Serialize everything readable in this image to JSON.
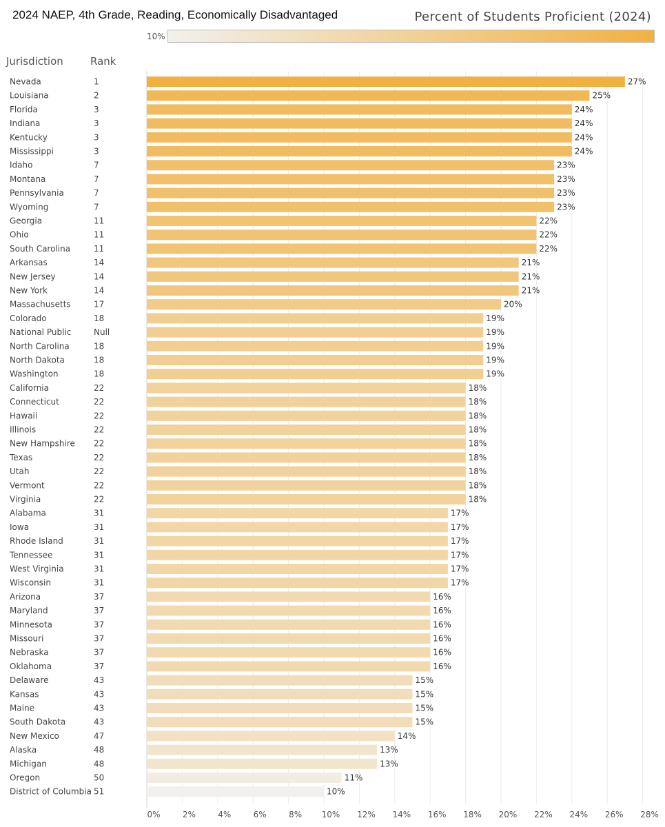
{
  "title": "2024 NAEP, 4th Grade, Reading, Economically Disadvantaged",
  "legend": {
    "title": "Percent of Students Proficient (2024)",
    "min_label": "10%",
    "color_low": "#f2f0ec",
    "color_high": "#f1b142"
  },
  "headers": {
    "jurisdiction": "Jurisdiction",
    "rank": "Rank"
  },
  "chart_data": {
    "type": "bar",
    "orientation": "horizontal",
    "xlim": [
      0,
      28
    ],
    "x_ticks": [
      "0%",
      "2%",
      "4%",
      "6%",
      "8%",
      "10%",
      "12%",
      "14%",
      "16%",
      "18%",
      "20%",
      "22%",
      "24%",
      "26%",
      "28%"
    ],
    "grid": true,
    "rows": [
      {
        "jurisdiction": "Nevada",
        "rank": "1",
        "value": 27,
        "label": "27%"
      },
      {
        "jurisdiction": "Louisiana",
        "rank": "2",
        "value": 25,
        "label": "25%"
      },
      {
        "jurisdiction": "Florida",
        "rank": "3",
        "value": 24,
        "label": "24%"
      },
      {
        "jurisdiction": "Indiana",
        "rank": "3",
        "value": 24,
        "label": "24%"
      },
      {
        "jurisdiction": "Kentucky",
        "rank": "3",
        "value": 24,
        "label": "24%"
      },
      {
        "jurisdiction": "Mississippi",
        "rank": "3",
        "value": 24,
        "label": "24%"
      },
      {
        "jurisdiction": "Idaho",
        "rank": "7",
        "value": 23,
        "label": "23%"
      },
      {
        "jurisdiction": "Montana",
        "rank": "7",
        "value": 23,
        "label": "23%"
      },
      {
        "jurisdiction": "Pennsylvania",
        "rank": "7",
        "value": 23,
        "label": "23%"
      },
      {
        "jurisdiction": "Wyoming",
        "rank": "7",
        "value": 23,
        "label": "23%"
      },
      {
        "jurisdiction": "Georgia",
        "rank": "11",
        "value": 22,
        "label": "22%"
      },
      {
        "jurisdiction": "Ohio",
        "rank": "11",
        "value": 22,
        "label": "22%"
      },
      {
        "jurisdiction": "South Carolina",
        "rank": "11",
        "value": 22,
        "label": "22%"
      },
      {
        "jurisdiction": "Arkansas",
        "rank": "14",
        "value": 21,
        "label": "21%"
      },
      {
        "jurisdiction": "New Jersey",
        "rank": "14",
        "value": 21,
        "label": "21%"
      },
      {
        "jurisdiction": "New York",
        "rank": "14",
        "value": 21,
        "label": "21%"
      },
      {
        "jurisdiction": "Massachusetts",
        "rank": "17",
        "value": 20,
        "label": "20%"
      },
      {
        "jurisdiction": "Colorado",
        "rank": "18",
        "value": 19,
        "label": "19%"
      },
      {
        "jurisdiction": "National Public",
        "rank": "Null",
        "value": 19,
        "label": "19%"
      },
      {
        "jurisdiction": "North Carolina",
        "rank": "18",
        "value": 19,
        "label": "19%"
      },
      {
        "jurisdiction": "North Dakota",
        "rank": "18",
        "value": 19,
        "label": "19%"
      },
      {
        "jurisdiction": "Washington",
        "rank": "18",
        "value": 19,
        "label": "19%"
      },
      {
        "jurisdiction": "California",
        "rank": "22",
        "value": 18,
        "label": "18%"
      },
      {
        "jurisdiction": "Connecticut",
        "rank": "22",
        "value": 18,
        "label": "18%"
      },
      {
        "jurisdiction": "Hawaii",
        "rank": "22",
        "value": 18,
        "label": "18%"
      },
      {
        "jurisdiction": "Illinois",
        "rank": "22",
        "value": 18,
        "label": "18%"
      },
      {
        "jurisdiction": "New Hampshire",
        "rank": "22",
        "value": 18,
        "label": "18%"
      },
      {
        "jurisdiction": "Texas",
        "rank": "22",
        "value": 18,
        "label": "18%"
      },
      {
        "jurisdiction": "Utah",
        "rank": "22",
        "value": 18,
        "label": "18%"
      },
      {
        "jurisdiction": "Vermont",
        "rank": "22",
        "value": 18,
        "label": "18%"
      },
      {
        "jurisdiction": "Virginia",
        "rank": "22",
        "value": 18,
        "label": "18%"
      },
      {
        "jurisdiction": "Alabama",
        "rank": "31",
        "value": 17,
        "label": "17%"
      },
      {
        "jurisdiction": "Iowa",
        "rank": "31",
        "value": 17,
        "label": "17%"
      },
      {
        "jurisdiction": "Rhode Island",
        "rank": "31",
        "value": 17,
        "label": "17%"
      },
      {
        "jurisdiction": "Tennessee",
        "rank": "31",
        "value": 17,
        "label": "17%"
      },
      {
        "jurisdiction": "West Virginia",
        "rank": "31",
        "value": 17,
        "label": "17%"
      },
      {
        "jurisdiction": "Wisconsin",
        "rank": "31",
        "value": 17,
        "label": "17%"
      },
      {
        "jurisdiction": "Arizona",
        "rank": "37",
        "value": 16,
        "label": "16%"
      },
      {
        "jurisdiction": "Maryland",
        "rank": "37",
        "value": 16,
        "label": "16%"
      },
      {
        "jurisdiction": "Minnesota",
        "rank": "37",
        "value": 16,
        "label": "16%"
      },
      {
        "jurisdiction": "Missouri",
        "rank": "37",
        "value": 16,
        "label": "16%"
      },
      {
        "jurisdiction": "Nebraska",
        "rank": "37",
        "value": 16,
        "label": "16%"
      },
      {
        "jurisdiction": "Oklahoma",
        "rank": "37",
        "value": 16,
        "label": "16%"
      },
      {
        "jurisdiction": "Delaware",
        "rank": "43",
        "value": 15,
        "label": "15%"
      },
      {
        "jurisdiction": "Kansas",
        "rank": "43",
        "value": 15,
        "label": "15%"
      },
      {
        "jurisdiction": "Maine",
        "rank": "43",
        "value": 15,
        "label": "15%"
      },
      {
        "jurisdiction": "South Dakota",
        "rank": "43",
        "value": 15,
        "label": "15%"
      },
      {
        "jurisdiction": "New Mexico",
        "rank": "47",
        "value": 14,
        "label": "14%"
      },
      {
        "jurisdiction": "Alaska",
        "rank": "48",
        "value": 13,
        "label": "13%"
      },
      {
        "jurisdiction": "Michigan",
        "rank": "48",
        "value": 13,
        "label": "13%"
      },
      {
        "jurisdiction": "Oregon",
        "rank": "50",
        "value": 11,
        "label": "11%"
      },
      {
        "jurisdiction": "District of Columbia",
        "rank": "51",
        "value": 10,
        "label": "10%"
      }
    ]
  }
}
